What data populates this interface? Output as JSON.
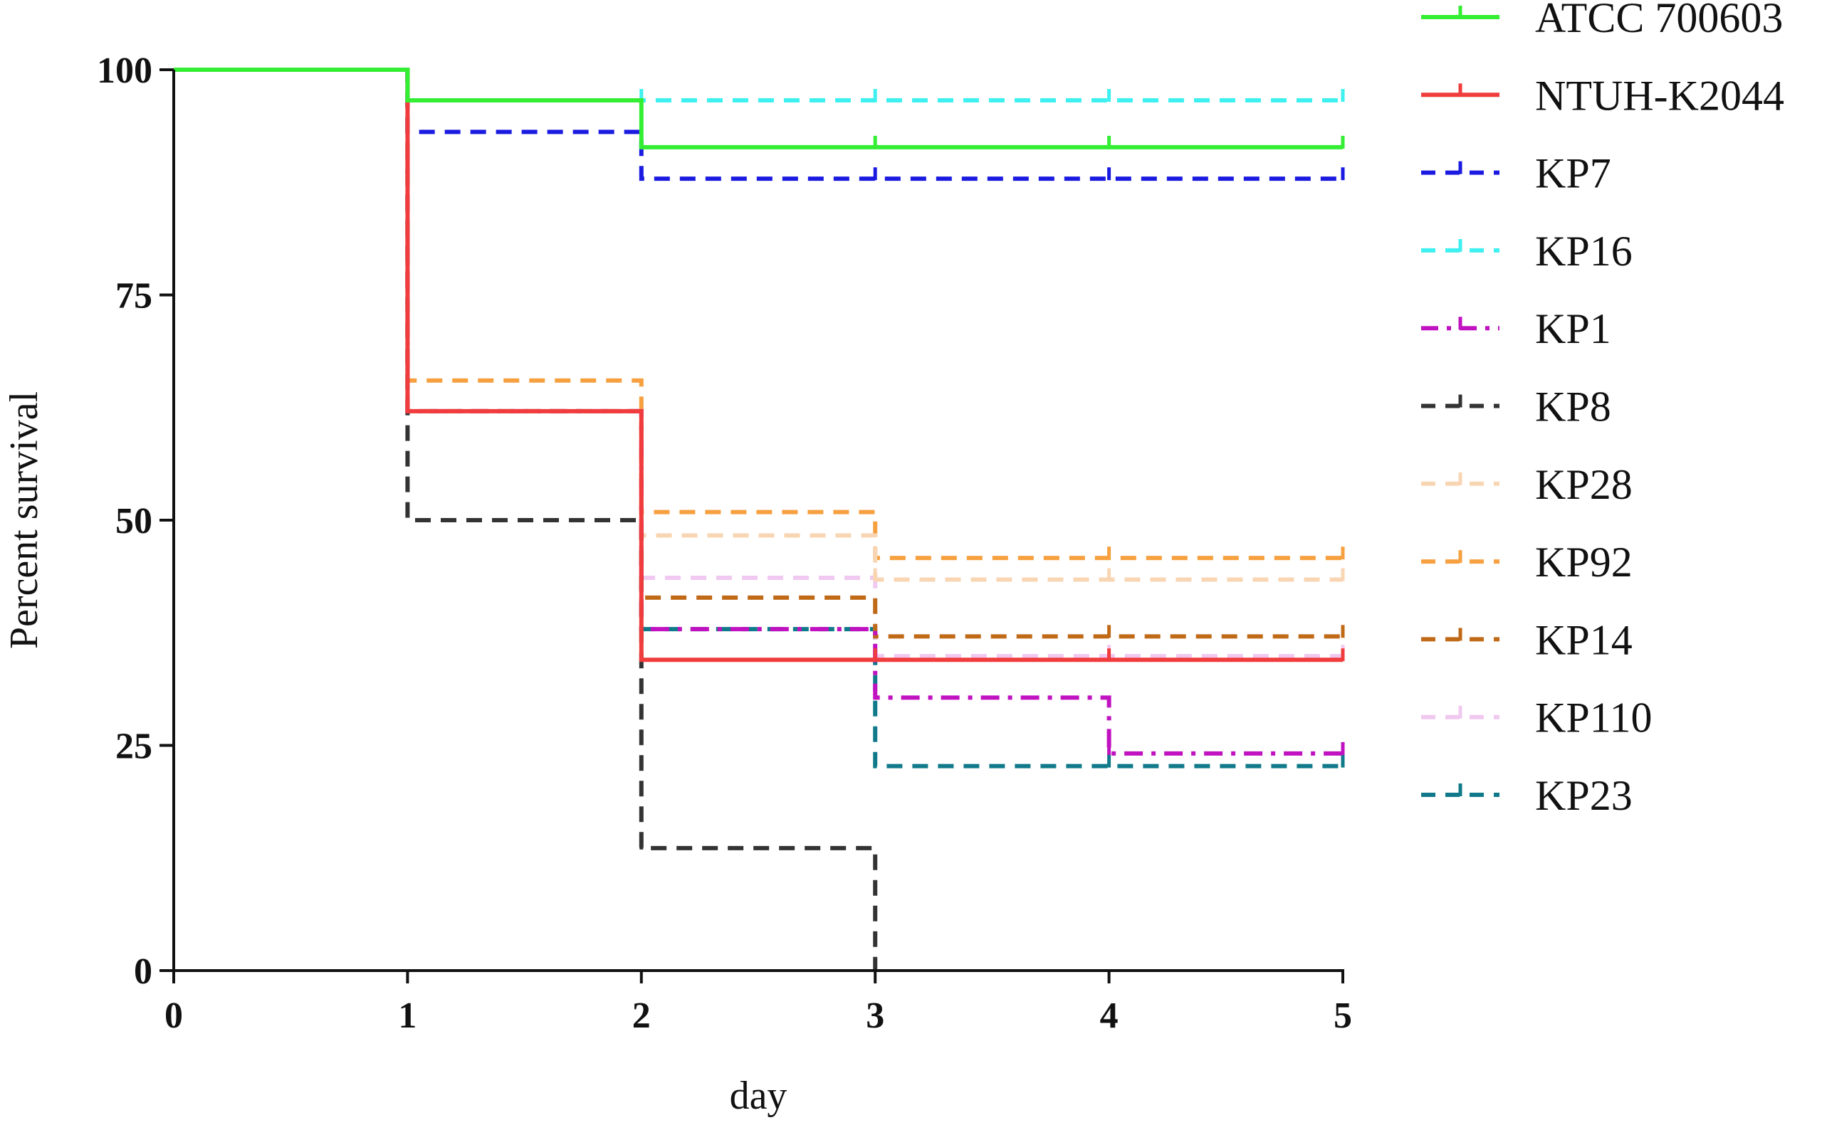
{
  "chart_data": {
    "type": "line",
    "title": "",
    "xlabel": "day",
    "ylabel": "Percent survival",
    "xlim": [
      0,
      5
    ],
    "ylim": [
      0,
      100
    ],
    "xticks": [
      0,
      1,
      2,
      3,
      4,
      5
    ],
    "yticks": [
      0,
      25,
      50,
      75,
      100
    ],
    "x_tick_labels": [
      "0",
      "1",
      "2",
      "3",
      "4",
      "5"
    ],
    "y_tick_labels": [
      "0",
      "25",
      "50",
      "75",
      "100"
    ],
    "grid": false,
    "legend_position": "right",
    "step_style": "post",
    "series": [
      {
        "name": "ATCC 700603",
        "color": "#33ee33",
        "dash": "solid",
        "x": [
          0,
          1,
          2,
          3,
          4,
          5
        ],
        "y": [
          100,
          96.6,
          91.4,
          91.4,
          91.4,
          91.4
        ]
      },
      {
        "name": "NTUH-K2044",
        "color": "#f03c3c",
        "dash": "solid",
        "x": [
          0,
          1,
          2,
          3,
          4,
          5
        ],
        "y": [
          100,
          62.1,
          34.5,
          34.5,
          34.5,
          34.5
        ]
      },
      {
        "name": "KP7",
        "color": "#1a1ae0",
        "dash": "dashed",
        "x": [
          0,
          1,
          2,
          3,
          4,
          5
        ],
        "y": [
          100,
          93.1,
          87.9,
          87.9,
          87.9,
          87.9
        ]
      },
      {
        "name": "KP16",
        "color": "#3ef0f0",
        "dash": "dashed",
        "x": [
          0,
          1,
          2,
          3,
          4,
          5
        ],
        "y": [
          100,
          96.6,
          96.6,
          96.6,
          96.6,
          96.6
        ]
      },
      {
        "name": "KP1",
        "color": "#c012c0",
        "dash": "dashdot",
        "x": [
          0,
          1,
          2,
          3,
          4,
          5
        ],
        "y": [
          100,
          62.1,
          37.9,
          30.3,
          24.1,
          24.1
        ]
      },
      {
        "name": "KP8",
        "color": "#333333",
        "dash": "dashed",
        "x": [
          0,
          1,
          2,
          3
        ],
        "y": [
          100,
          50,
          13.6,
          0
        ]
      },
      {
        "name": "KP28",
        "color": "#f8d6b4",
        "dash": "dashed",
        "x": [
          0,
          1,
          2,
          3,
          4,
          5
        ],
        "y": [
          100,
          62.1,
          48.3,
          43.4,
          43.4,
          43.4
        ]
      },
      {
        "name": "KP92",
        "color": "#f6a040",
        "dash": "dashed",
        "x": [
          0,
          1,
          2,
          3,
          4,
          5
        ],
        "y": [
          100,
          65.5,
          50.9,
          45.8,
          45.8,
          45.8
        ]
      },
      {
        "name": "KP14",
        "color": "#c06a18",
        "dash": "dashed",
        "x": [
          0,
          1,
          2,
          3,
          4,
          5
        ],
        "y": [
          100,
          62.1,
          41.4,
          37.1,
          37.1,
          37.1
        ]
      },
      {
        "name": "KP110",
        "color": "#f0c8f0",
        "dash": "dashed",
        "x": [
          0,
          1,
          2,
          3,
          4,
          5
        ],
        "y": [
          100,
          62.1,
          43.6,
          34.9,
          34.9,
          34.9
        ]
      },
      {
        "name": "KP23",
        "color": "#117a8a",
        "dash": "dashed",
        "x": [
          0,
          1,
          2,
          3,
          4,
          5
        ],
        "y": [
          100,
          62.1,
          37.9,
          22.7,
          22.7,
          22.7
        ]
      }
    ]
  }
}
